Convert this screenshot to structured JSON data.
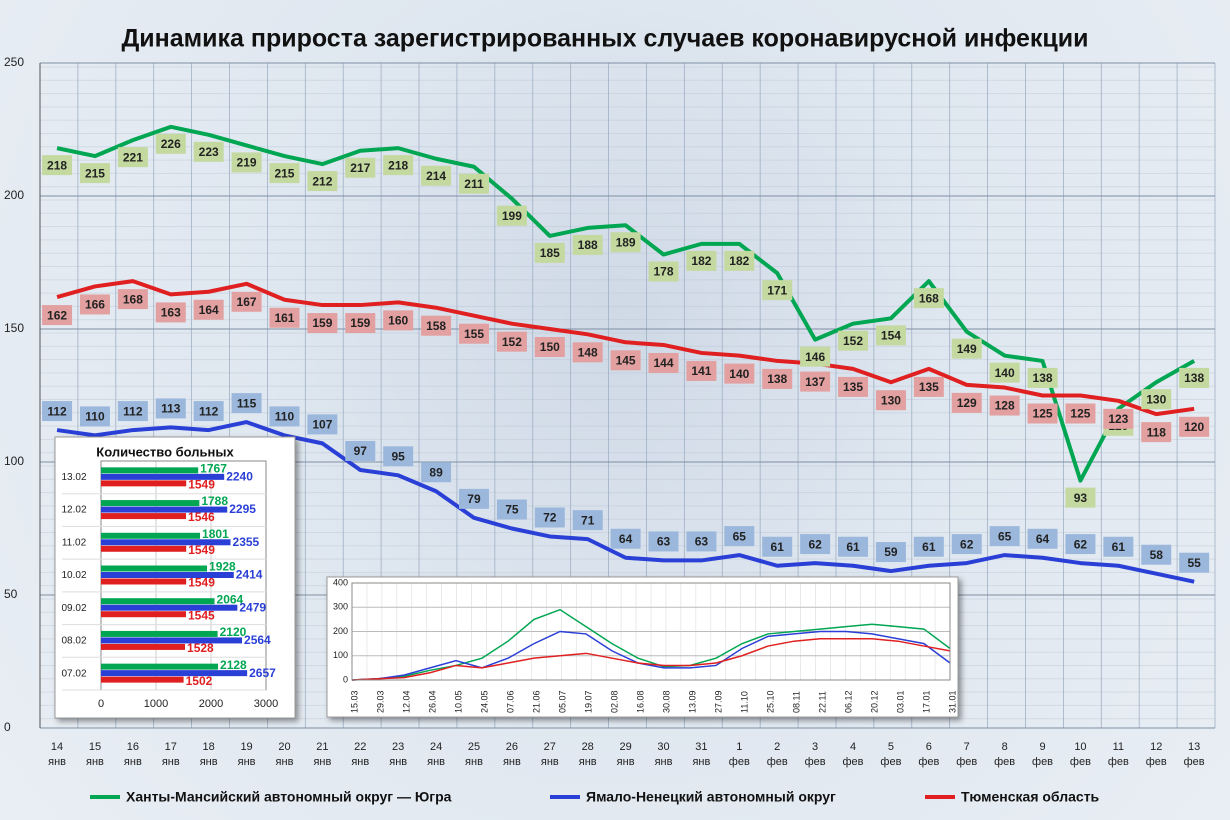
{
  "chart_data": [
    {
      "type": "line",
      "title": "Динамика прироста зарегистрированных случаев коронавирусной инфекции",
      "categories": [
        "14 янв",
        "15 янв",
        "16 янв",
        "17 янв",
        "18 янв",
        "19 янв",
        "20 янв",
        "21 янв",
        "22 янв",
        "23 янв",
        "24 янв",
        "25 янв",
        "26 янв",
        "27 янв",
        "28 янв",
        "29 янв",
        "30 янв",
        "31 янв",
        "1 фев",
        "2 фев",
        "3 фев",
        "4 фев",
        "5 фев",
        "6 фев",
        "7 фев",
        "8 фев",
        "9 фев",
        "10 фев",
        "11 фев",
        "12 фев",
        "13 фев"
      ],
      "series": [
        {
          "name": "Ханты-Мансийский автономный округ — Югра",
          "color": "#00a651",
          "label_color": "#c4d9a0",
          "values": [
            218,
            215,
            221,
            226,
            223,
            219,
            215,
            212,
            217,
            218,
            214,
            211,
            199,
            185,
            188,
            189,
            178,
            182,
            182,
            171,
            146,
            152,
            154,
            168,
            149,
            140,
            138,
            93,
            120,
            130,
            138
          ]
        },
        {
          "name": "Ямало-Ненецкий автономный округ",
          "color": "#2a3fd6",
          "label_color": "#9bb8dc",
          "values": [
            112,
            110,
            112,
            113,
            112,
            115,
            110,
            107,
            97,
            95,
            89,
            79,
            75,
            72,
            71,
            64,
            63,
            63,
            65,
            61,
            62,
            61,
            59,
            61,
            62,
            65,
            64,
            62,
            61,
            58,
            55
          ]
        },
        {
          "name": "Тюменская область",
          "color": "#e02020",
          "label_color": "#e2a0a0",
          "values": [
            162,
            166,
            168,
            163,
            164,
            167,
            161,
            159,
            159,
            160,
            158,
            155,
            152,
            150,
            148,
            145,
            144,
            141,
            140,
            138,
            137,
            135,
            130,
            135,
            129,
            128,
            125,
            125,
            123,
            118,
            120
          ]
        }
      ],
      "ylim": [
        0,
        250
      ],
      "yticks": [
        0,
        50,
        100,
        150,
        200,
        250
      ],
      "grid": true
    },
    {
      "type": "bar",
      "orientation": "horizontal",
      "title": "Количество больных",
      "categories": [
        "13.02",
        "12.02",
        "11.02",
        "10.02",
        "09.02",
        "08.02",
        "07.02"
      ],
      "series": [
        {
          "color": "#00a651",
          "values": [
            1767,
            1788,
            1801,
            1928,
            2064,
            2120,
            2128
          ]
        },
        {
          "color": "#2a3fd6",
          "values": [
            2240,
            2295,
            2355,
            2414,
            2479,
            2564,
            2657
          ]
        },
        {
          "color": "#e02020",
          "values": [
            1549,
            1546,
            1549,
            1549,
            1545,
            1528,
            1502
          ]
        }
      ],
      "xlim": [
        0,
        3000
      ],
      "xticks": [
        0,
        1000,
        2000,
        3000
      ]
    },
    {
      "type": "line",
      "categories": [
        "15.03",
        "29.03",
        "12.04",
        "26.04",
        "10.05",
        "24.05",
        "07.06",
        "21.06",
        "05.07",
        "19.07",
        "02.08",
        "16.08",
        "30.08",
        "13.09",
        "27.09",
        "11.10",
        "25.10",
        "08.11",
        "22.11",
        "06.12",
        "20.12",
        "03.01",
        "17.01",
        "31.01"
      ],
      "series": [
        {
          "color": "#00a651",
          "values": [
            0,
            5,
            15,
            40,
            60,
            90,
            160,
            250,
            290,
            220,
            150,
            90,
            55,
            60,
            90,
            150,
            190,
            200,
            210,
            220,
            230,
            220,
            210,
            130
          ]
        },
        {
          "color": "#2a3fd6",
          "values": [
            0,
            5,
            20,
            50,
            80,
            50,
            90,
            150,
            200,
            190,
            120,
            70,
            50,
            50,
            60,
            130,
            180,
            190,
            200,
            200,
            190,
            170,
            150,
            70
          ]
        },
        {
          "color": "#e02020",
          "values": [
            0,
            5,
            10,
            30,
            60,
            50,
            70,
            90,
            100,
            110,
            90,
            70,
            60,
            60,
            70,
            100,
            140,
            160,
            170,
            170,
            170,
            160,
            140,
            120
          ]
        }
      ],
      "ylim": [
        0,
        400
      ],
      "yticks": [
        0,
        100,
        200,
        300,
        400
      ],
      "grid": true
    }
  ]
}
